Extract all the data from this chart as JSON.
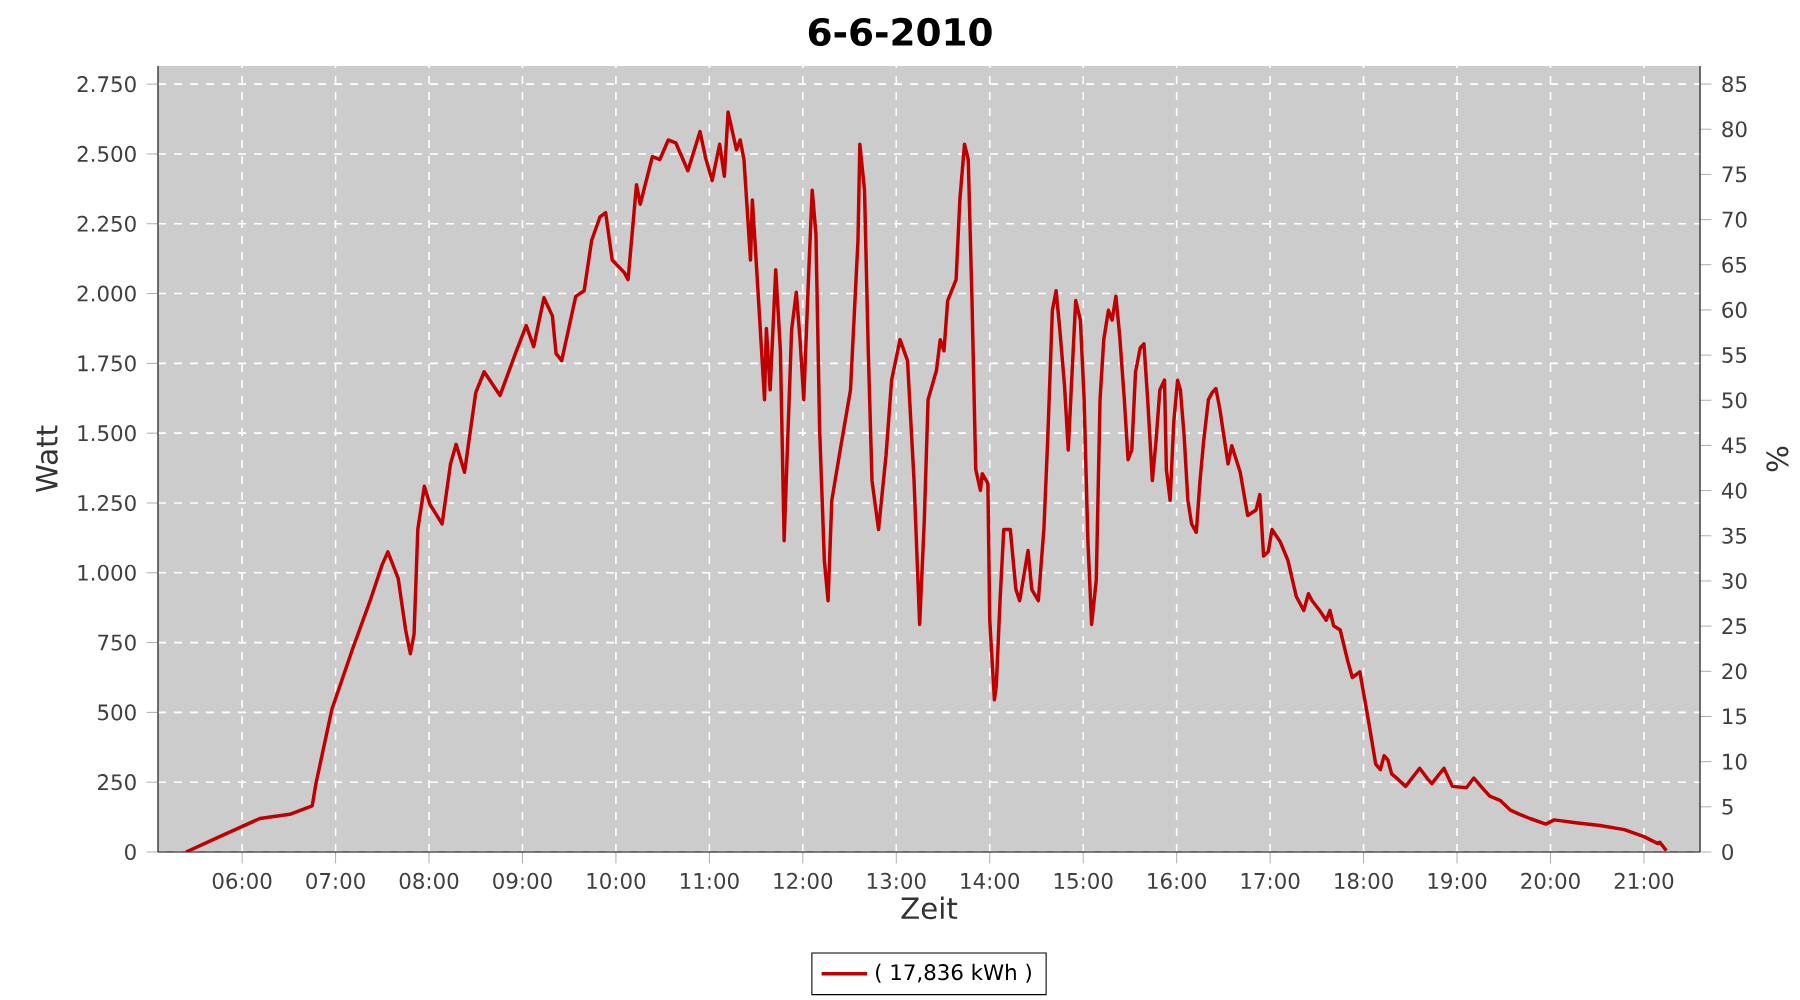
{
  "chart_data": {
    "type": "line",
    "title": "6-6-2010",
    "xlabel": "Zeit",
    "ylabel": "Watt",
    "y2label": "%",
    "xlim": [
      5.1,
      21.6
    ],
    "ylim": [
      0,
      2815
    ],
    "y2lim": [
      0,
      87
    ],
    "xticks": [
      {
        "value": 6,
        "label": "06:00"
      },
      {
        "value": 7,
        "label": "07:00"
      },
      {
        "value": 8,
        "label": "08:00"
      },
      {
        "value": 9,
        "label": "09:00"
      },
      {
        "value": 10,
        "label": "10:00"
      },
      {
        "value": 11,
        "label": "11:00"
      },
      {
        "value": 12,
        "label": "12:00"
      },
      {
        "value": 13,
        "label": "13:00"
      },
      {
        "value": 14,
        "label": "14:00"
      },
      {
        "value": 15,
        "label": "15:00"
      },
      {
        "value": 16,
        "label": "16:00"
      },
      {
        "value": 17,
        "label": "17:00"
      },
      {
        "value": 18,
        "label": "18:00"
      },
      {
        "value": 19,
        "label": "19:00"
      },
      {
        "value": 20,
        "label": "20:00"
      },
      {
        "value": 21,
        "label": "21:00"
      }
    ],
    "yticks": [
      0,
      250,
      500,
      750,
      {
        "value": 1000,
        "label": "1.000"
      },
      {
        "value": 1250,
        "label": "1.250"
      },
      {
        "value": 1500,
        "label": "1.500"
      },
      {
        "value": 1750,
        "label": "1.750"
      },
      {
        "value": 2000,
        "label": "2.000"
      },
      {
        "value": 2250,
        "label": "2.250"
      },
      {
        "value": 2500,
        "label": "2.500"
      },
      {
        "value": 2750,
        "label": "2.750"
      }
    ],
    "y2ticks": [
      0,
      5,
      10,
      15,
      20,
      25,
      30,
      35,
      40,
      45,
      50,
      55,
      60,
      65,
      70,
      75,
      80,
      85
    ],
    "grid": true,
    "legend": "bottom",
    "series": [
      {
        "name": "( 17,836 kWh )",
        "color": "#c00000",
        "x": [
          5.4,
          5.76,
          6.19,
          6.51,
          6.75,
          6.79,
          6.96,
          7.18,
          7.37,
          7.5,
          7.56,
          7.67,
          7.75,
          7.8,
          7.84,
          7.88,
          7.95,
          8.01,
          8.14,
          8.23,
          8.29,
          8.38,
          8.5,
          8.59,
          8.76,
          8.93,
          9.04,
          9.12,
          9.23,
          9.32,
          9.36,
          9.42,
          9.57,
          9.66,
          9.74,
          9.83,
          9.89,
          9.96,
          10.09,
          10.13,
          10.22,
          10.26,
          10.39,
          10.47,
          10.56,
          10.64,
          10.77,
          10.9,
          10.96,
          11.03,
          11.11,
          11.16,
          11.2,
          11.29,
          11.33,
          11.37,
          11.44,
          11.46,
          11.5,
          11.59,
          11.61,
          11.65,
          11.71,
          11.76,
          11.8,
          11.88,
          11.93,
          11.97,
          12.01,
          12.06,
          12.1,
          12.14,
          12.18,
          12.23,
          12.27,
          12.31,
          12.4,
          12.51,
          12.59,
          12.61,
          12.66,
          12.7,
          12.74,
          12.81,
          12.89,
          12.95,
          13.04,
          13.12,
          13.19,
          13.25,
          13.3,
          13.34,
          13.43,
          13.47,
          13.51,
          13.55,
          13.64,
          13.68,
          13.73,
          13.77,
          13.81,
          13.85,
          13.9,
          13.92,
          13.98,
          14.0,
          14.05,
          14.07,
          14.11,
          14.15,
          14.22,
          14.28,
          14.32,
          14.41,
          14.45,
          14.52,
          14.58,
          14.62,
          14.67,
          14.71,
          14.75,
          14.8,
          14.84,
          14.88,
          14.92,
          14.97,
          15.01,
          15.05,
          15.09,
          15.14,
          15.18,
          15.22,
          15.27,
          15.31,
          15.35,
          15.39,
          15.44,
          15.48,
          15.52,
          15.56,
          15.61,
          15.65,
          15.69,
          15.74,
          15.78,
          15.82,
          15.87,
          15.89,
          15.93,
          15.97,
          16.01,
          16.04,
          16.08,
          16.12,
          16.16,
          16.21,
          16.25,
          16.29,
          16.34,
          16.38,
          16.42,
          16.46,
          16.55,
          16.59,
          16.68,
          16.76,
          16.85,
          16.89,
          16.93,
          16.98,
          17.02,
          17.11,
          17.19,
          17.28,
          17.36,
          17.41,
          17.45,
          17.53,
          17.6,
          17.64,
          17.68,
          17.75,
          17.83,
          17.88,
          17.96,
          18.05,
          18.13,
          18.18,
          18.22,
          18.26,
          18.3,
          18.37,
          18.45,
          18.6,
          18.69,
          18.73,
          18.86,
          18.95,
          19.1,
          19.18,
          19.27,
          19.35,
          19.46,
          19.57,
          19.67,
          19.78,
          19.95,
          20.04,
          20.27,
          20.53,
          20.79,
          21.0,
          21.15,
          21.17,
          21.24
        ],
        "values": [
          0,
          55,
          120,
          135,
          165,
          245,
          510,
          725,
          900,
          1030,
          1075,
          980,
          795,
          710,
          780,
          1155,
          1310,
          1245,
          1175,
          1390,
          1460,
          1360,
          1645,
          1720,
          1635,
          1790,
          1885,
          1810,
          1985,
          1920,
          1785,
          1760,
          1990,
          2010,
          2190,
          2275,
          2290,
          2120,
          2075,
          2050,
          2390,
          2320,
          2490,
          2480,
          2550,
          2540,
          2440,
          2580,
          2485,
          2405,
          2535,
          2420,
          2650,
          2515,
          2550,
          2480,
          2120,
          2335,
          2120,
          1620,
          1875,
          1655,
          2085,
          1795,
          1115,
          1870,
          2005,
          1835,
          1620,
          2050,
          2370,
          2215,
          1510,
          1045,
          900,
          1260,
          1440,
          1655,
          2190,
          2535,
          2370,
          1795,
          1330,
          1155,
          1420,
          1690,
          1835,
          1760,
          1330,
          815,
          1190,
          1620,
          1725,
          1835,
          1795,
          1975,
          2050,
          2335,
          2535,
          2480,
          1975,
          1370,
          1295,
          1355,
          1320,
          830,
          545,
          595,
          900,
          1155,
          1155,
          940,
          900,
          1080,
          940,
          900,
          1160,
          1475,
          1940,
          2010,
          1870,
          1670,
          1440,
          1710,
          1975,
          1905,
          1620,
          1115,
          815,
          975,
          1620,
          1835,
          1940,
          1905,
          1990,
          1850,
          1620,
          1405,
          1440,
          1720,
          1805,
          1820,
          1620,
          1330,
          1475,
          1655,
          1690,
          1370,
          1260,
          1545,
          1690,
          1655,
          1490,
          1260,
          1175,
          1145,
          1330,
          1475,
          1620,
          1645,
          1660,
          1590,
          1390,
          1455,
          1360,
          1205,
          1225,
          1280,
          1060,
          1075,
          1155,
          1110,
          1045,
          915,
          865,
          925,
          900,
          865,
          830,
          865,
          810,
          795,
          685,
          625,
          645,
          475,
          315,
          295,
          345,
          330,
          280,
          260,
          235,
          300,
          260,
          245,
          300,
          235,
          230,
          265,
          230,
          200,
          185,
          150,
          135,
          120,
          100,
          115,
          105,
          95,
          80,
          55,
          30,
          35,
          5
        ]
      }
    ]
  }
}
